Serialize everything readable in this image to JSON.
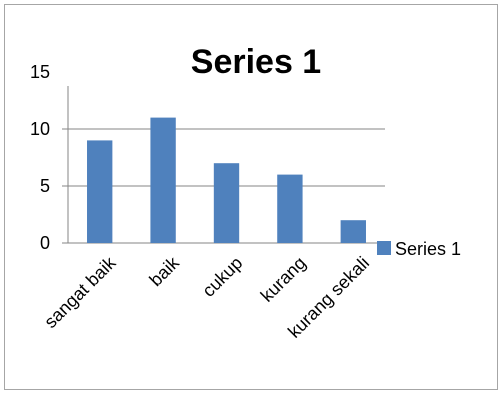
{
  "chart_data": {
    "type": "bar",
    "title": "Series 1",
    "categories": [
      "sangat baik",
      "baik",
      "cukup",
      "kurang",
      "kurang sekali"
    ],
    "series": [
      {
        "name": "Series 1",
        "values": [
          9,
          11,
          7,
          6,
          2
        ],
        "color": "#4f81bd"
      }
    ],
    "yticks": [
      0,
      5,
      10,
      15
    ],
    "ylim": [
      0,
      15
    ],
    "xlabel": "",
    "ylabel": "",
    "grid": true,
    "legend": "right"
  },
  "colors": {
    "bar": "#4f81bd",
    "grid": "#868686",
    "frame": "#a6a6a6"
  }
}
